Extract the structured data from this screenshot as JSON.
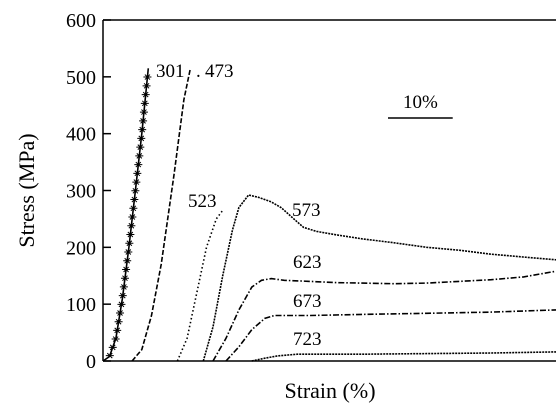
{
  "chart_data": {
    "type": "line",
    "title": "",
    "xlabel": "Strain (%)",
    "ylabel": "Stress (MPa)",
    "xlim": [
      0,
      70
    ],
    "ylim": [
      0,
      600
    ],
    "yticks": [
      0,
      100,
      200,
      300,
      400,
      500,
      600
    ],
    "ytick_labels": [
      "0",
      "100",
      "200",
      "300",
      "400",
      "500",
      "600"
    ],
    "x_tick_labels_shown": false,
    "grid": false,
    "legend": "none",
    "scale_bar": {
      "label": "10%",
      "length": 10
    },
    "series": [
      {
        "name": "301",
        "style": "stars",
        "x": [
          0,
          1,
          2,
          3,
          4,
          5,
          6,
          7
        ],
        "y": [
          0,
          8,
          40,
          110,
          200,
          300,
          400,
          515
        ]
      },
      {
        "name": "473",
        "style": "dash",
        "x": [
          4.5,
          6,
          7.5,
          9,
          10,
          11,
          11.8,
          12.5,
          13.5
        ],
        "y": [
          0,
          20,
          80,
          170,
          250,
          330,
          400,
          460,
          515
        ]
      },
      {
        "name": "523",
        "style": "dot",
        "x": [
          11.5,
          13,
          14.5,
          16,
          17.5,
          18.5
        ],
        "y": [
          0,
          40,
          120,
          200,
          250,
          265
        ]
      },
      {
        "name": "573",
        "style": "dense-dot",
        "x": [
          15.5,
          17,
          18.5,
          20,
          21,
          22.5,
          24,
          26,
          27.5,
          29,
          30,
          31,
          33,
          36,
          40,
          45,
          50,
          55,
          60,
          66,
          70
        ],
        "y": [
          0,
          60,
          150,
          230,
          270,
          292,
          288,
          280,
          270,
          255,
          245,
          235,
          228,
          222,
          215,
          208,
          200,
          195,
          188,
          182,
          178
        ]
      },
      {
        "name": "623",
        "style": "dash-dot",
        "x": [
          17,
          19,
          21,
          23,
          24.5,
          26,
          28,
          32,
          36,
          40,
          45,
          50,
          55,
          60,
          65,
          70
        ],
        "y": [
          0,
          40,
          90,
          130,
          142,
          145,
          142,
          140,
          138,
          137,
          136,
          137,
          140,
          143,
          148,
          158
        ]
      },
      {
        "name": "673",
        "style": "dash-dot",
        "x": [
          19,
          21,
          23,
          25,
          26.5,
          28,
          32,
          40,
          50,
          60,
          70
        ],
        "y": [
          0,
          25,
          55,
          75,
          80,
          80,
          80,
          82,
          84,
          86,
          90
        ]
      },
      {
        "name": "723",
        "style": "dense-dot",
        "x": [
          23,
          25,
          27,
          30,
          35,
          40,
          50,
          60,
          70
        ],
        "y": [
          0,
          5,
          9,
          12,
          12,
          12,
          13,
          14,
          16
        ]
      }
    ],
    "annotations": [
      "301",
      "473",
      "523",
      "573",
      "623",
      "673",
      "723",
      "10%"
    ]
  }
}
